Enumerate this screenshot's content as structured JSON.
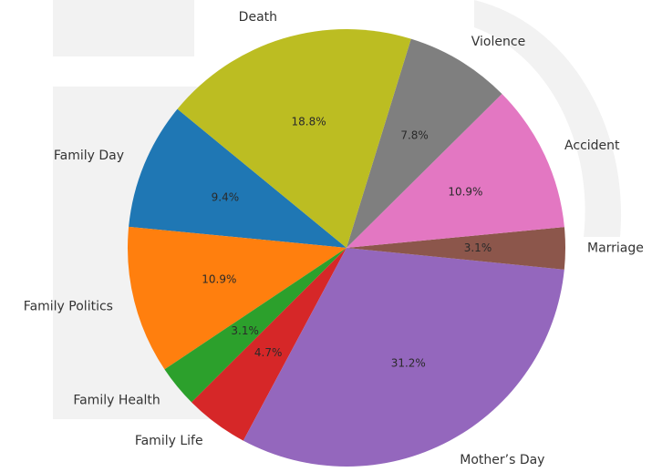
{
  "chart_data": {
    "type": "pie",
    "categories": [
      "Family Day",
      "Family Politics",
      "Family Health",
      "Family Life",
      "Mother’s Day",
      "Marriage",
      "Accident",
      "Violence",
      "Death"
    ],
    "values": [
      9.4,
      10.9,
      3.1,
      4.7,
      31.2,
      3.1,
      10.9,
      7.8,
      18.8
    ],
    "value_labels": [
      "9.4%",
      "10.9%",
      "3.1%",
      "4.7%",
      "31.2%",
      "3.1%",
      "10.9%",
      "7.8%",
      "18.8%"
    ],
    "colors": [
      "#1f77b4",
      "#ff7f0e",
      "#2ca02c",
      "#d62728",
      "#9467bd",
      "#8c564b",
      "#e377c2",
      "#7f7f7f",
      "#bcbd22"
    ]
  }
}
